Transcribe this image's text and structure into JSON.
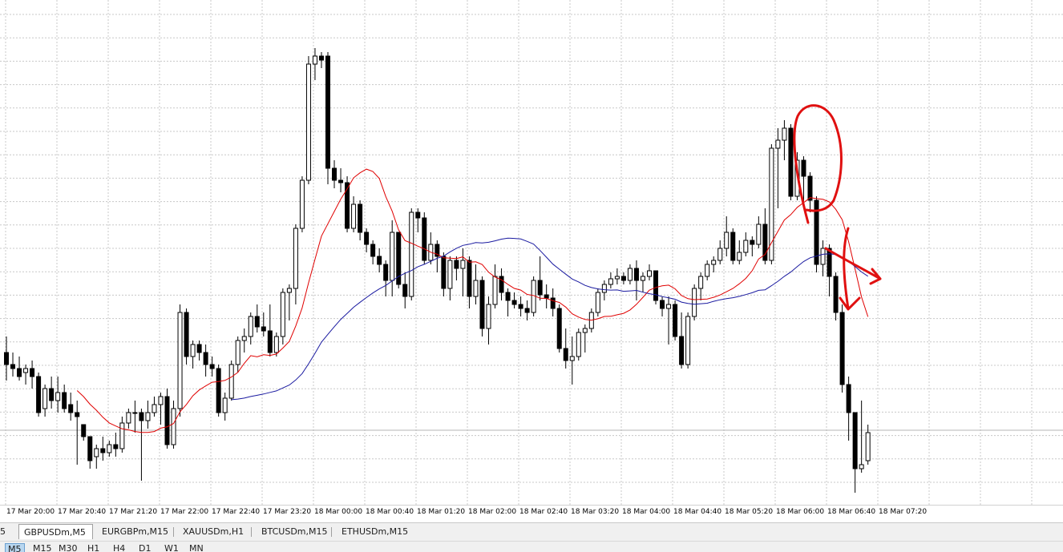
{
  "colors": {
    "grid": "#c8c8c8",
    "candle": "#000000",
    "ma_fast": "#e00000",
    "ma_slow": "#1a1aa0",
    "annotation": "#e01010",
    "price_line": "#b4b4b4"
  },
  "chart_data": {
    "type": "candlestick",
    "symbol": "GBPUSDm",
    "timeframe": "M5",
    "x_tick_labels": [
      "17 Mar 20:00",
      "17 Mar 20:40",
      "17 Mar 21:20",
      "17 Mar 22:00",
      "17 Mar 22:40",
      "17 Mar 23:20",
      "18 Mar 00:00",
      "18 Mar 00:40",
      "18 Mar 01:20",
      "18 Mar 02:00",
      "18 Mar 02:40",
      "18 Mar 03:20",
      "18 Mar 04:00",
      "18 Mar 04:40",
      "18 Mar 05:20",
      "18 Mar 06:00",
      "18 Mar 06:40",
      "18 Mar 07:20"
    ],
    "grid": true,
    "candles": [
      [
        440,
        420,
        475,
        455
      ],
      [
        455,
        440,
        470,
        460
      ],
      [
        460,
        445,
        475,
        470
      ],
      [
        465,
        455,
        480,
        460
      ],
      [
        460,
        450,
        485,
        470
      ],
      [
        470,
        465,
        520,
        515
      ],
      [
        510,
        480,
        520,
        485
      ],
      [
        485,
        470,
        510,
        500
      ],
      [
        500,
        470,
        515,
        490
      ],
      [
        490,
        480,
        515,
        510
      ],
      [
        505,
        490,
        525,
        515
      ],
      [
        515,
        500,
        580,
        520
      ],
      [
        530,
        530,
        550,
        545
      ],
      [
        545,
        550,
        585,
        575
      ],
      [
        570,
        555,
        585,
        560
      ],
      [
        560,
        545,
        575,
        565
      ],
      [
        565,
        550,
        570,
        555
      ],
      [
        555,
        540,
        570,
        560
      ],
      [
        560,
        520,
        565,
        528
      ],
      [
        528,
        510,
        535,
        515
      ],
      [
        515,
        500,
        540,
        515
      ],
      [
        515,
        510,
        600,
        525
      ],
      [
        525,
        500,
        535,
        515
      ],
      [
        515,
        495,
        520,
        505
      ],
      [
        505,
        490,
        530,
        495
      ],
      [
        495,
        485,
        560,
        555
      ],
      [
        555,
        500,
        560,
        510
      ],
      [
        510,
        380,
        520,
        390
      ],
      [
        390,
        385,
        455,
        445
      ],
      [
        445,
        425,
        460,
        430
      ],
      [
        430,
        425,
        450,
        440
      ],
      [
        440,
        430,
        470,
        455
      ],
      [
        455,
        445,
        470,
        460
      ],
      [
        460,
        455,
        520,
        515
      ],
      [
        515,
        490,
        525,
        497
      ],
      [
        497,
        450,
        500,
        455
      ],
      [
        455,
        420,
        465,
        425
      ],
      [
        425,
        410,
        440,
        420
      ],
      [
        420,
        390,
        430,
        395
      ],
      [
        395,
        380,
        415,
        408
      ],
      [
        408,
        390,
        420,
        413
      ],
      [
        413,
        380,
        445,
        440
      ],
      [
        440,
        415,
        445,
        420
      ],
      [
        420,
        360,
        430,
        365
      ],
      [
        365,
        355,
        400,
        360
      ],
      [
        360,
        280,
        380,
        285
      ],
      [
        285,
        220,
        290,
        225
      ],
      [
        225,
        70,
        230,
        80
      ],
      [
        80,
        60,
        100,
        70
      ],
      [
        70,
        65,
        85,
        75
      ],
      [
        70,
        65,
        230,
        210
      ],
      [
        210,
        200,
        235,
        225
      ],
      [
        225,
        210,
        240,
        228
      ],
      [
        228,
        220,
        290,
        285
      ],
      [
        285,
        245,
        290,
        255
      ],
      [
        255,
        250,
        300,
        290
      ],
      [
        290,
        285,
        315,
        305
      ],
      [
        305,
        300,
        330,
        320
      ],
      [
        320,
        310,
        340,
        330
      ],
      [
        330,
        325,
        370,
        350
      ],
      [
        350,
        275,
        370,
        290
      ],
      [
        290,
        300,
        360,
        355
      ],
      [
        355,
        340,
        385,
        370
      ],
      [
        370,
        260,
        375,
        265
      ],
      [
        265,
        260,
        290,
        272
      ],
      [
        272,
        265,
        330,
        325
      ],
      [
        325,
        290,
        330,
        305
      ],
      [
        305,
        300,
        340,
        320
      ],
      [
        320,
        315,
        370,
        360
      ],
      [
        360,
        320,
        375,
        325
      ],
      [
        325,
        320,
        350,
        335
      ],
      [
        335,
        310,
        370,
        325
      ],
      [
        325,
        320,
        385,
        370
      ],
      [
        370,
        330,
        380,
        350
      ],
      [
        350,
        345,
        420,
        410
      ],
      [
        410,
        370,
        430,
        380
      ],
      [
        380,
        330,
        385,
        345
      ],
      [
        345,
        335,
        375,
        365
      ],
      [
        365,
        360,
        395,
        375
      ],
      [
        375,
        365,
        385,
        380
      ],
      [
        380,
        370,
        395,
        385
      ],
      [
        385,
        375,
        400,
        390
      ],
      [
        390,
        345,
        395,
        350
      ],
      [
        350,
        320,
        375,
        368
      ],
      [
        368,
        355,
        385,
        372
      ],
      [
        372,
        360,
        395,
        385
      ],
      [
        385,
        380,
        440,
        435
      ],
      [
        435,
        410,
        460,
        450
      ],
      [
        450,
        420,
        480,
        445
      ],
      [
        445,
        410,
        450,
        415
      ],
      [
        415,
        405,
        440,
        410
      ],
      [
        410,
        385,
        415,
        390
      ],
      [
        390,
        360,
        395,
        365
      ],
      [
        365,
        350,
        375,
        355
      ],
      [
        355,
        340,
        360,
        348
      ],
      [
        348,
        335,
        355,
        345
      ],
      [
        345,
        340,
        355,
        350
      ],
      [
        350,
        330,
        355,
        335
      ],
      [
        335,
        325,
        375,
        350
      ],
      [
        350,
        340,
        365,
        345
      ],
      [
        345,
        330,
        350,
        338
      ],
      [
        338,
        340,
        380,
        375
      ],
      [
        375,
        370,
        395,
        385
      ],
      [
        385,
        370,
        430,
        380
      ],
      [
        380,
        375,
        425,
        420
      ],
      [
        420,
        390,
        460,
        455
      ],
      [
        455,
        390,
        460,
        395
      ],
      [
        395,
        355,
        400,
        360
      ],
      [
        360,
        340,
        375,
        345
      ],
      [
        345,
        325,
        350,
        330
      ],
      [
        330,
        320,
        340,
        325
      ],
      [
        325,
        300,
        330,
        310
      ],
      [
        310,
        270,
        320,
        290
      ],
      [
        290,
        285,
        330,
        325
      ],
      [
        325,
        300,
        330,
        315
      ],
      [
        315,
        290,
        320,
        300
      ],
      [
        300,
        295,
        320,
        305
      ],
      [
        305,
        270,
        310,
        280
      ],
      [
        280,
        260,
        330,
        325
      ],
      [
        325,
        180,
        330,
        185
      ],
      [
        185,
        160,
        260,
        175
      ],
      [
        175,
        150,
        200,
        160
      ],
      [
        160,
        155,
        250,
        245
      ],
      [
        245,
        190,
        250,
        200
      ],
      [
        200,
        195,
        260,
        220
      ],
      [
        220,
        215,
        265,
        250
      ],
      [
        250,
        245,
        340,
        330
      ],
      [
        330,
        300,
        345,
        310
      ],
      [
        310,
        305,
        370,
        345
      ],
      [
        345,
        340,
        400,
        390
      ],
      [
        390,
        380,
        490,
        480
      ],
      [
        480,
        470,
        550,
        515
      ],
      [
        515,
        520,
        615,
        585
      ],
      [
        585,
        500,
        590,
        580
      ],
      [
        575,
        530,
        580,
        540
      ]
    ]
  },
  "tabs": [
    {
      "label": "5"
    },
    {
      "label": "GBPUSDm,M5"
    },
    {
      "label": "EURGBPm,M15"
    },
    {
      "label": "XAUUSDm,H1"
    },
    {
      "label": "BTCUSDm,M15"
    },
    {
      "label": "ETHUSDm,M15"
    }
  ],
  "active_tab_index": 1,
  "timeframes": [
    "M5",
    "M15",
    "M30",
    "H1",
    "H4",
    "D1",
    "W1",
    "MN"
  ],
  "active_timeframe": "M5"
}
